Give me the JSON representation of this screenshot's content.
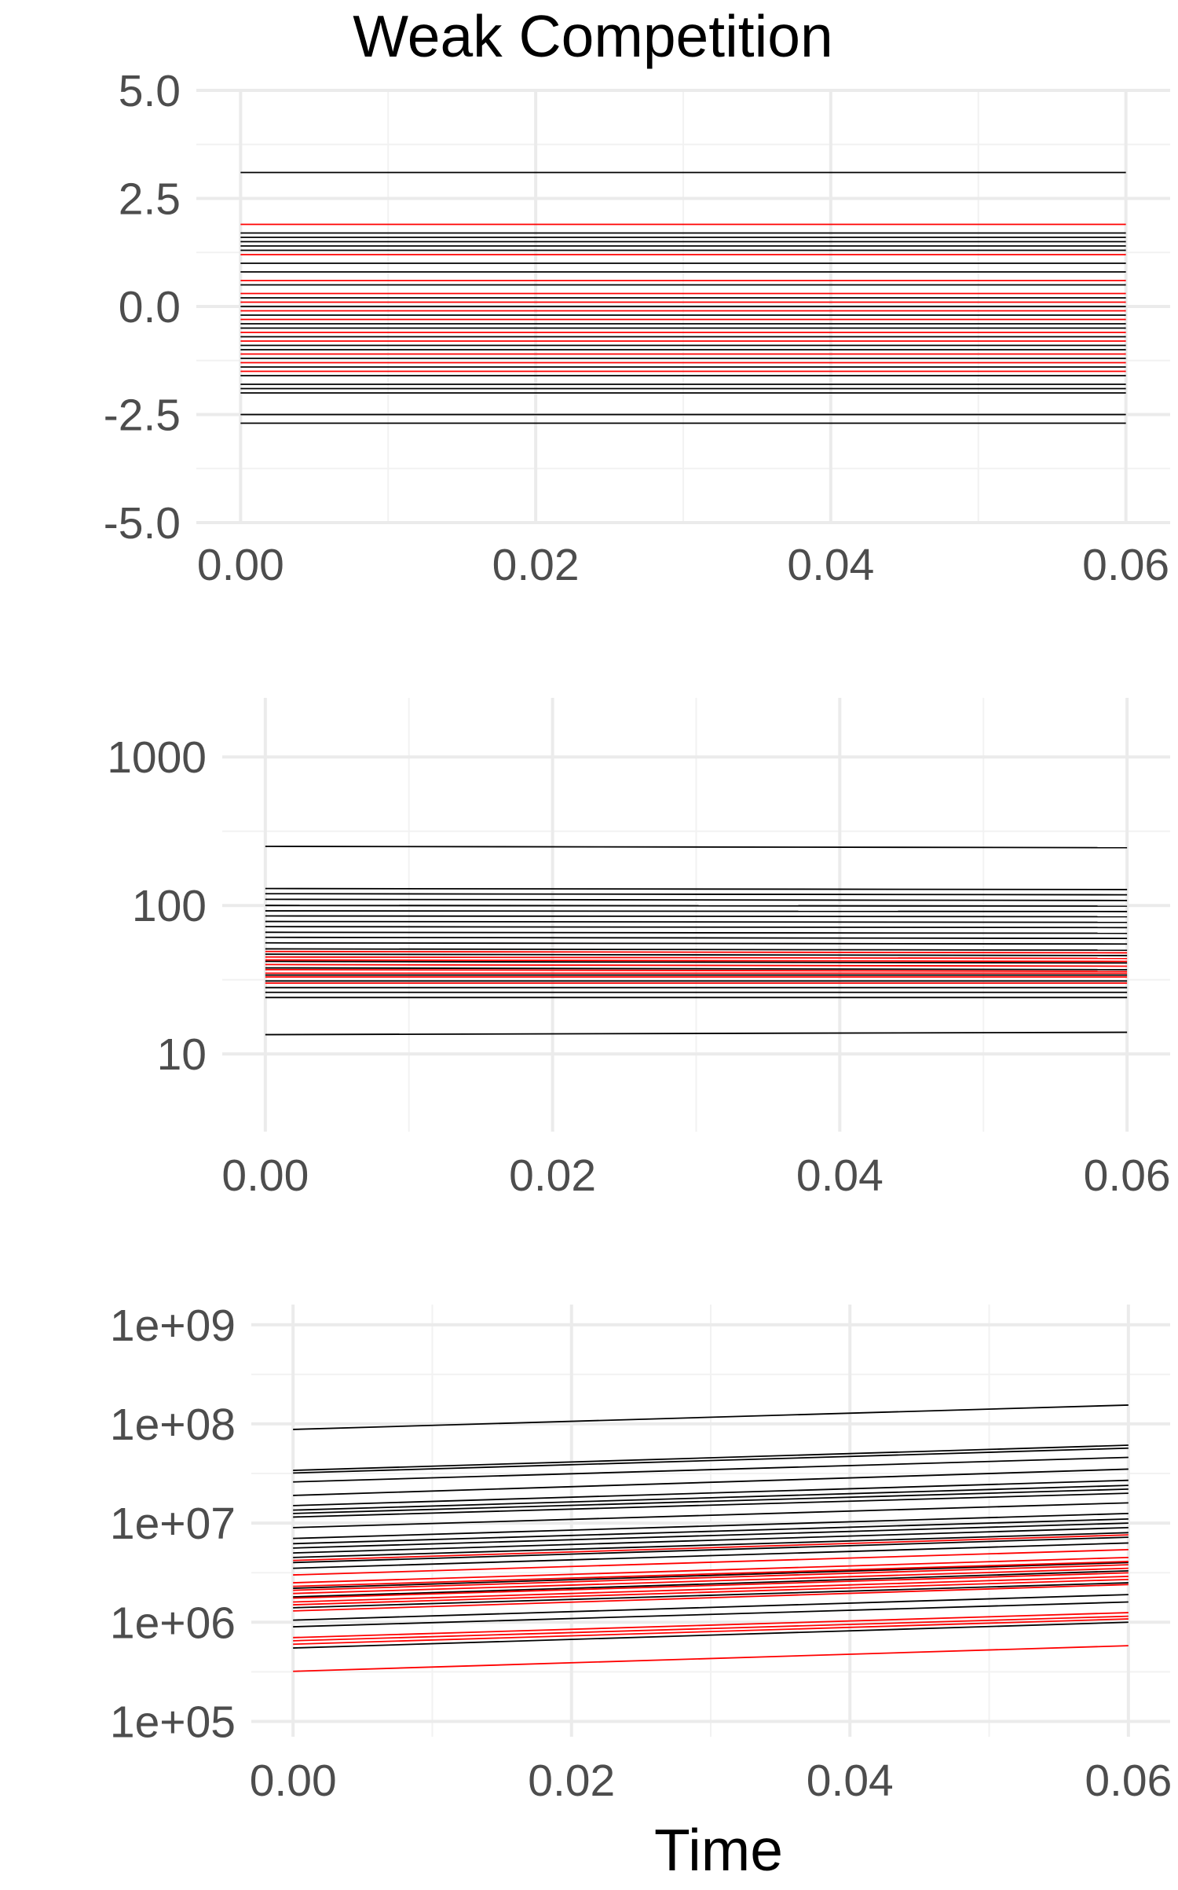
{
  "title": "Weak Competition",
  "colors": {
    "focal": "#ff0000",
    "other": "#000000",
    "grid_major": "#ebebeb",
    "grid_minor": "#f2f2f2",
    "tick_text": "#4d4d4d"
  },
  "chart_data": [
    {
      "type": "line",
      "title": "Weak Competition",
      "xlabel": "",
      "ylabel": "",
      "xlim": [
        -0.003,
        0.063
      ],
      "ylim": [
        -5,
        5
      ],
      "y_scale": "linear",
      "x_ticks": [
        "0.00",
        "0.02",
        "0.04",
        "0.06"
      ],
      "y_ticks": [
        "5.0",
        "2.5",
        "0.0",
        "-2.5",
        "-5.0"
      ],
      "grid": true,
      "x": [
        0,
        0.06
      ],
      "series_black_start_end": [
        [
          3.1,
          3.1
        ],
        [
          1.7,
          1.7
        ],
        [
          1.6,
          1.6
        ],
        [
          1.5,
          1.5
        ],
        [
          1.4,
          1.4
        ],
        [
          1.3,
          1.3
        ],
        [
          1.0,
          1.0
        ],
        [
          0.8,
          0.8
        ],
        [
          0.5,
          0.5
        ],
        [
          0.2,
          0.2
        ],
        [
          0.0,
          0.0
        ],
        [
          -0.2,
          -0.2
        ],
        [
          -0.4,
          -0.4
        ],
        [
          -0.5,
          -0.5
        ],
        [
          -0.7,
          -0.7
        ],
        [
          -0.9,
          -0.9
        ],
        [
          -1.0,
          -1.0
        ],
        [
          -1.2,
          -1.2
        ],
        [
          -1.4,
          -1.4
        ],
        [
          -1.6,
          -1.6
        ],
        [
          -1.8,
          -1.8
        ],
        [
          -1.9,
          -1.9
        ],
        [
          -2.0,
          -2.0
        ],
        [
          -2.5,
          -2.5
        ],
        [
          -2.7,
          -2.7
        ]
      ],
      "series_red_start_end": [
        [
          1.9,
          1.9
        ],
        [
          1.2,
          1.2
        ],
        [
          0.6,
          0.6
        ],
        [
          0.3,
          0.3
        ],
        [
          0.1,
          0.1
        ],
        [
          -0.1,
          -0.1
        ],
        [
          -0.3,
          -0.3
        ],
        [
          -0.6,
          -0.6
        ],
        [
          -0.8,
          -0.8
        ],
        [
          -1.1,
          -1.1
        ],
        [
          -1.3,
          -1.3
        ],
        [
          -1.5,
          -1.5
        ]
      ]
    },
    {
      "type": "line",
      "xlabel": "",
      "ylabel": "",
      "xlim": [
        -0.003,
        0.063
      ],
      "ylim": [
        3,
        2500
      ],
      "y_scale": "log10",
      "x_ticks": [
        "0.00",
        "0.02",
        "0.04",
        "0.06"
      ],
      "y_ticks": [
        "1000",
        "100",
        "10"
      ],
      "grid": true,
      "x": [
        0,
        0.06
      ],
      "series_black_start_end": [
        [
          250,
          245
        ],
        [
          130,
          128
        ],
        [
          120,
          118
        ],
        [
          110,
          108
        ],
        [
          100,
          99
        ],
        [
          92,
          91
        ],
        [
          85,
          84
        ],
        [
          78,
          77
        ],
        [
          72,
          71
        ],
        [
          66,
          65
        ],
        [
          61,
          60
        ],
        [
          56,
          55
        ],
        [
          51,
          50
        ],
        [
          47,
          46
        ],
        [
          42,
          41
        ],
        [
          38,
          37
        ],
        [
          34,
          34
        ],
        [
          31,
          31
        ],
        [
          28,
          28
        ],
        [
          26,
          26
        ],
        [
          24,
          24
        ],
        [
          13.5,
          14
        ]
      ],
      "series_red_start_end": [
        [
          49,
          48
        ],
        [
          45,
          44
        ],
        [
          43,
          42
        ],
        [
          40,
          39
        ],
        [
          37,
          36
        ],
        [
          35,
          35
        ],
        [
          33,
          33
        ],
        [
          30,
          30
        ]
      ]
    },
    {
      "type": "line",
      "xlabel": "Time",
      "ylabel": "",
      "xlim": [
        -0.003,
        0.063
      ],
      "ylim": [
        70000,
        1600000000
      ],
      "y_scale": "log10",
      "x_ticks": [
        "0.00",
        "0.02",
        "0.04",
        "0.06"
      ],
      "y_ticks": [
        "1e+09",
        "1e+08",
        "1e+07",
        "1e+06",
        "1e+05"
      ],
      "grid": true,
      "x": [
        0,
        0.06
      ],
      "series_black_start_end": [
        [
          88000000,
          155000000
        ],
        [
          34000000,
          61000000
        ],
        [
          32000000,
          57000000
        ],
        [
          26000000,
          46000000
        ],
        [
          19000000,
          35000000
        ],
        [
          15000000,
          27000000
        ],
        [
          13500000,
          24000000
        ],
        [
          12500000,
          22000000
        ],
        [
          11500000,
          20000000
        ],
        [
          9000000,
          16000000
        ],
        [
          7000000,
          12500000
        ],
        [
          6200000,
          11000000
        ],
        [
          5600000,
          10000000
        ],
        [
          5000000,
          9000000
        ],
        [
          4500000,
          8000000
        ],
        [
          4000000,
          7200000
        ],
        [
          3500000,
          6300000
        ],
        [
          2200000,
          4000000
        ],
        [
          1800000,
          3300000
        ],
        [
          1400000,
          2500000
        ],
        [
          1050000,
          1900000
        ],
        [
          900000,
          1600000
        ],
        [
          550000,
          1000000
        ]
      ],
      "series_red_start_end": [
        [
          4200000,
          7600000
        ],
        [
          3000000,
          5400000
        ],
        [
          2500000,
          4500000
        ],
        [
          2300000,
          4100000
        ],
        [
          2100000,
          3800000
        ],
        [
          1950000,
          3500000
        ],
        [
          1750000,
          3150000
        ],
        [
          1600000,
          2900000
        ],
        [
          1500000,
          2700000
        ],
        [
          1300000,
          2400000
        ],
        [
          700000,
          1250000
        ],
        [
          650000,
          1150000
        ],
        [
          600000,
          1080000
        ],
        [
          320000,
          580000
        ]
      ]
    }
  ]
}
